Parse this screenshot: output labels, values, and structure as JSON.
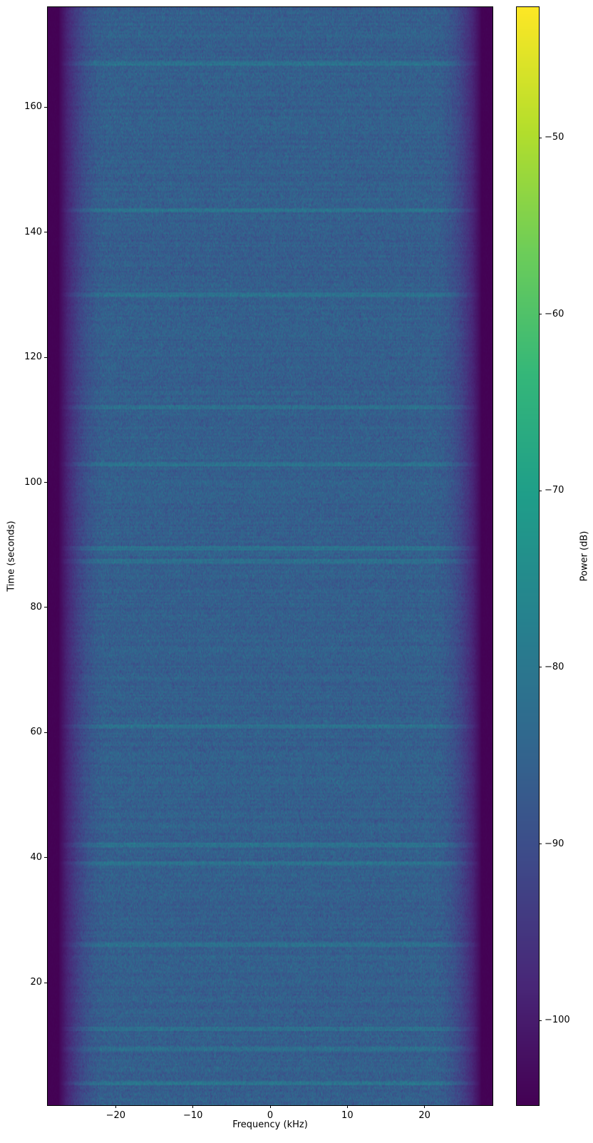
{
  "chart_data": {
    "type": "heatmap",
    "subtype": "spectrogram",
    "xlabel": "Frequency (kHz)",
    "ylabel": "Time (seconds)",
    "colorbar_label": "Power (dB)",
    "colormap": "viridis",
    "xlim": [
      -28.8,
      28.8
    ],
    "ylim": [
      0.4,
      176
    ],
    "clim": [
      -104.8,
      -42.6
    ],
    "xticks": [
      -20,
      -10,
      0,
      10,
      20
    ],
    "xtick_labels": [
      "−20",
      "−10",
      "0",
      "10",
      "20"
    ],
    "yticks": [
      20,
      40,
      60,
      80,
      100,
      120,
      140,
      160
    ],
    "ytick_labels": [
      "20",
      "40",
      "60",
      "80",
      "100",
      "120",
      "140",
      "160"
    ],
    "cticks": [
      -100,
      -90,
      -80,
      -70,
      -60,
      -50
    ],
    "ctick_labels": [
      "−100",
      "−90",
      "−80",
      "−70",
      "−60",
      "−50"
    ],
    "passband_khz": [
      -26,
      26
    ],
    "typical_passband_power_db": -86,
    "out_of_band_power_db": -104.8,
    "bright_bands_s": [
      167,
      143.5,
      130,
      112,
      103,
      89.5,
      87.5,
      61,
      42,
      39,
      26,
      12.5,
      9.5,
      4
    ]
  }
}
